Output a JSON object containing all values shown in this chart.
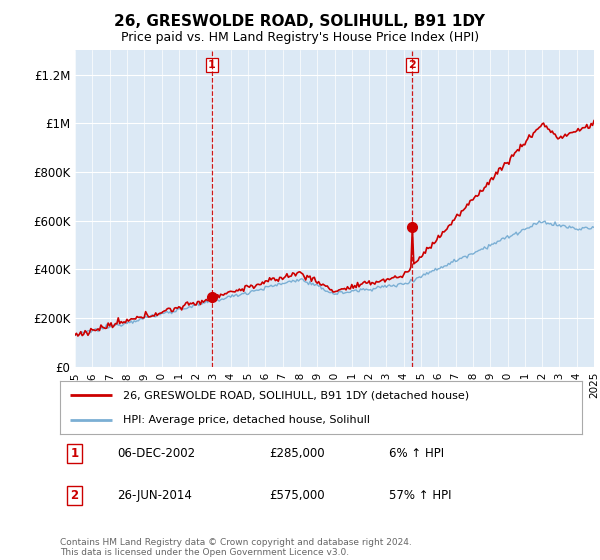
{
  "title": "26, GRESWOLDE ROAD, SOLIHULL, B91 1DY",
  "subtitle": "Price paid vs. HM Land Registry's House Price Index (HPI)",
  "ylim": [
    0,
    1300000
  ],
  "yticks": [
    0,
    200000,
    400000,
    600000,
    800000,
    1000000,
    1200000
  ],
  "ytick_labels": [
    "£0",
    "£200K",
    "£400K",
    "£600K",
    "£800K",
    "£1M",
    "£1.2M"
  ],
  "x_start_year": 1995,
  "x_end_year": 2025,
  "purchase1_date": 2002.92,
  "purchase1_price": 285000,
  "purchase2_date": 2014.5,
  "purchase2_price": 575000,
  "legend_line1": "26, GRESWOLDE ROAD, SOLIHULL, B91 1DY (detached house)",
  "legend_line2": "HPI: Average price, detached house, Solihull",
  "table_row1": [
    "1",
    "06-DEC-2002",
    "£285,000",
    "6% ↑ HPI"
  ],
  "table_row2": [
    "2",
    "26-JUN-2014",
    "£575,000",
    "57% ↑ HPI"
  ],
  "footnote": "Contains HM Land Registry data © Crown copyright and database right 2024.\nThis data is licensed under the Open Government Licence v3.0.",
  "line_color_red": "#cc0000",
  "line_color_blue": "#7bafd4",
  "dashed_color": "#cc0000",
  "bg_color": "#dce9f5",
  "marker_color_red": "#cc0000"
}
